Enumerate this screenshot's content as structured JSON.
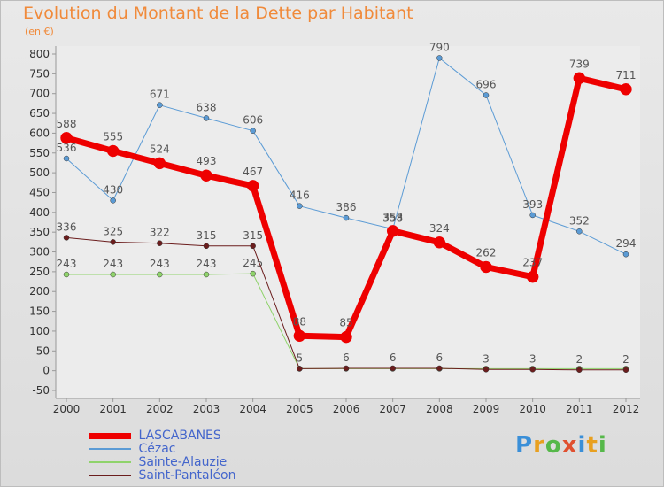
{
  "title": "Evolution du Montant de la Dette par Habitant",
  "unit": "(en €)",
  "logo": "Proxiti",
  "chart_data": {
    "type": "line",
    "title": "Evolution du Montant de la Dette par Habitant",
    "ylabel": "(en €)",
    "xlabel": "",
    "ylim": [
      -50,
      800
    ],
    "yticks": [
      -50,
      0,
      50,
      100,
      150,
      200,
      250,
      300,
      350,
      400,
      450,
      500,
      550,
      600,
      650,
      700,
      750,
      800
    ],
    "x": [
      "2000",
      "2001",
      "2002",
      "2003",
      "2004",
      "2005",
      "2006",
      "2007",
      "2008",
      "2009",
      "2010",
      "2011",
      "2012"
    ],
    "grid": false,
    "legend_position": "bottom-left",
    "series": [
      {
        "name": "LASCABANES",
        "color": "#ee0000",
        "width": 7,
        "values": [
          588,
          555,
          524,
          493,
          467,
          88,
          85,
          353,
          324,
          262,
          237,
          739,
          711
        ]
      },
      {
        "name": "Cézac",
        "color": "#5b9bd5",
        "width": 1,
        "values": [
          536,
          430,
          671,
          638,
          606,
          416,
          386,
          358,
          null,
          696,
          393,
          352,
          294
        ],
        "extra": {
          "8": 790
        }
      },
      {
        "name": "Sainte-Alauzie",
        "color": "#8fd36b",
        "width": 1,
        "values": [
          243,
          243,
          243,
          243,
          245,
          null,
          null,
          null,
          null,
          null,
          null,
          null,
          null
        ]
      },
      {
        "name": "Saint-Pantaléon",
        "color": "#6b1d1d",
        "width": 1,
        "values": [
          336,
          325,
          322,
          315,
          315,
          5,
          6,
          6,
          6,
          3,
          3,
          2,
          2
        ]
      }
    ]
  }
}
